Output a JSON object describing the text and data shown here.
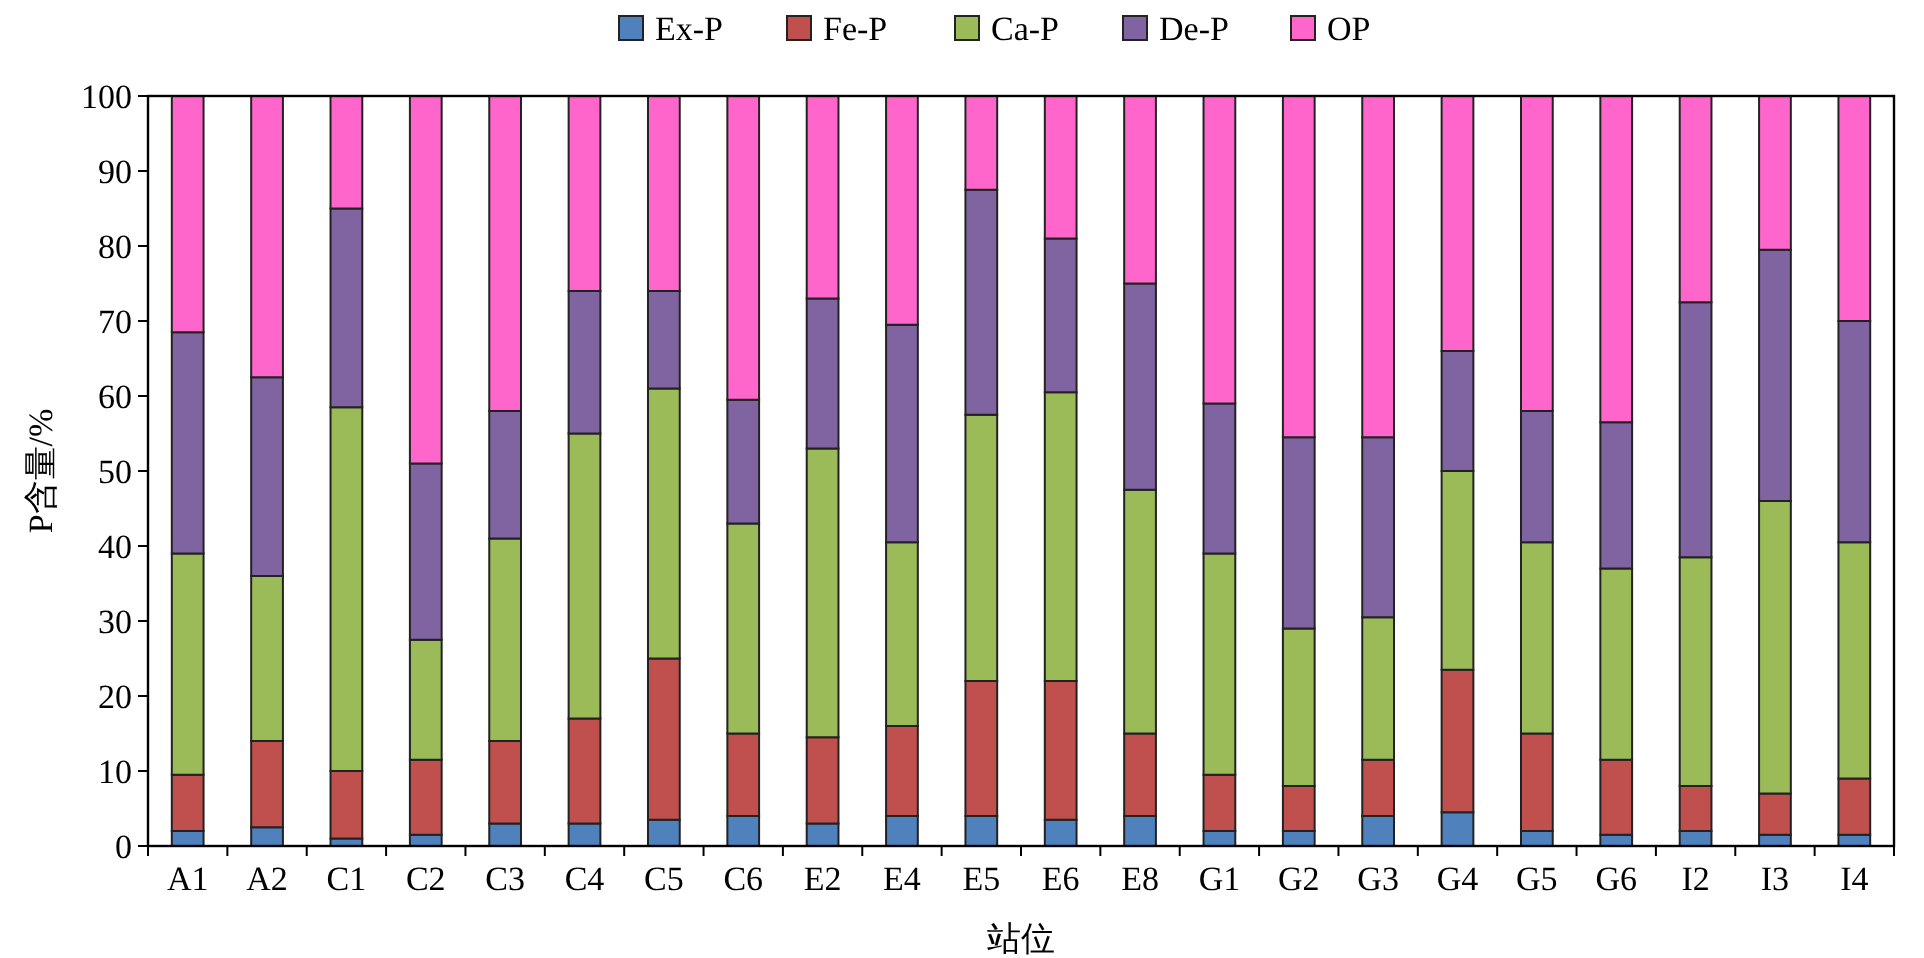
{
  "chart_data": {
    "type": "bar",
    "stacked": true,
    "ylabel": "P含量/%",
    "xlabel": "站位",
    "legend": "top",
    "grid": false,
    "categories": [
      "A1",
      "A2",
      "C1",
      "C2",
      "C3",
      "C4",
      "C5",
      "C6",
      "E2",
      "E4",
      "E5",
      "E6",
      "E8",
      "G1",
      "G2",
      "G3",
      "G4",
      "G5",
      "G6",
      "I2",
      "I3",
      "I4"
    ],
    "ylim": [
      0,
      100
    ],
    "yticks": [
      0,
      10,
      20,
      30,
      40,
      50,
      60,
      70,
      80,
      90,
      100
    ],
    "series": [
      {
        "name": "Ex-P",
        "color": "#4f81bd",
        "values": [
          2,
          2.5,
          1,
          1.5,
          3,
          3,
          3.5,
          4,
          3,
          4,
          4,
          3.5,
          4,
          2,
          2,
          4,
          4.5,
          2,
          1.5,
          2,
          1.5,
          1.5
        ]
      },
      {
        "name": "Fe-P",
        "color": "#c0504d",
        "values": [
          7.5,
          11.5,
          9,
          10,
          11,
          14,
          21.5,
          11,
          11.5,
          12,
          18,
          18.5,
          11,
          7.5,
          6,
          7.5,
          19,
          13,
          10,
          6,
          5.5,
          7.5
        ]
      },
      {
        "name": "Ca-P",
        "color": "#9bbb59",
        "values": [
          29.5,
          22,
          48.5,
          16,
          27,
          38,
          36,
          28,
          38.5,
          24.5,
          35.5,
          38.5,
          32.5,
          29.5,
          21,
          19,
          26.5,
          25.5,
          25.5,
          30.5,
          39,
          31.5
        ]
      },
      {
        "name": "De-P",
        "color": "#8064a2",
        "values": [
          29.5,
          26.5,
          26.5,
          23.5,
          17,
          19,
          13,
          16.5,
          20,
          29,
          30,
          20.5,
          27.5,
          20,
          25.5,
          24,
          16,
          17.5,
          19.5,
          34,
          33.5,
          29.5
        ]
      },
      {
        "name": "OP",
        "color": "#ff66cc",
        "values": [
          31.5,
          37.5,
          15,
          49,
          42,
          26,
          26,
          40.5,
          27,
          30.5,
          12.5,
          19,
          25,
          41,
          45.5,
          45.5,
          34,
          42,
          43.5,
          27.5,
          20.5,
          30
        ]
      }
    ]
  }
}
